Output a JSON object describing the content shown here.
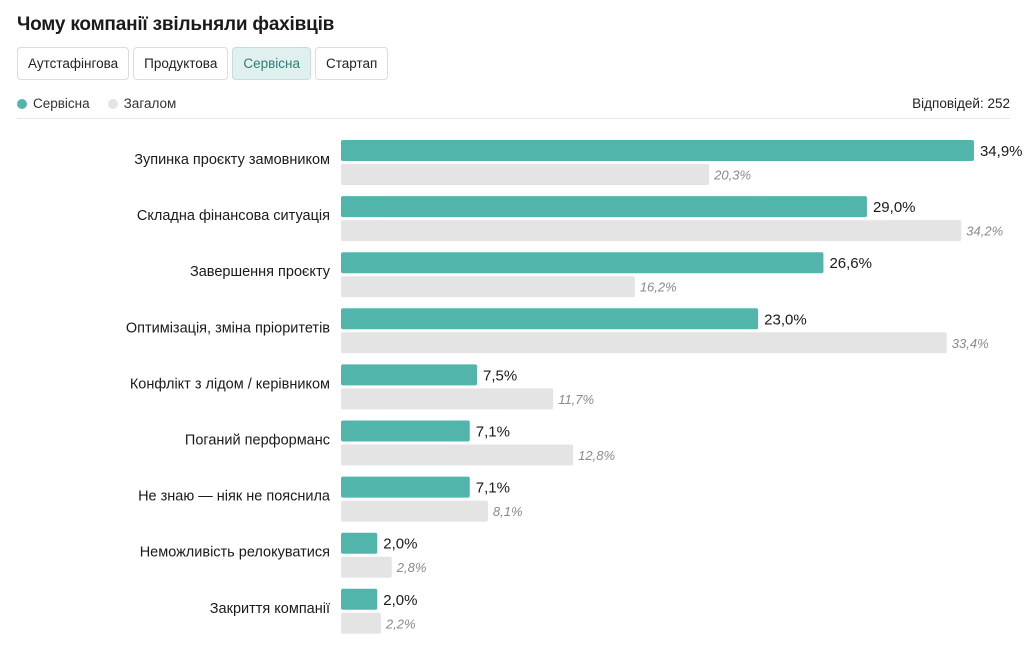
{
  "header": {
    "title": "Чому компанії звільняли фахівців"
  },
  "tabs": [
    {
      "label": "Аутстафінгова",
      "active": false
    },
    {
      "label": "Продуктова",
      "active": false
    },
    {
      "label": "Сервісна",
      "active": true
    },
    {
      "label": "Стартап",
      "active": false
    }
  ],
  "legend": {
    "primary": {
      "label": "Сервісна",
      "color": "#52b5ab"
    },
    "secondary": {
      "label": "Загалом",
      "color": "#e4e4e4"
    }
  },
  "responses_label": "Відповідей: 252",
  "chart_data": {
    "type": "bar",
    "orientation": "horizontal",
    "categories": [
      "Зупинка проєкту замовником",
      "Складна фінансова ситуація",
      "Завершення проєкту",
      "Оптимізація, зміна пріоритетів",
      "Конфлікт з лідом / керівником",
      "Поганий перформанс",
      "Не знаю — ніяк не пояснила",
      "Неможливість релокуватися",
      "Закриття компанії"
    ],
    "series": [
      {
        "name": "Сервісна",
        "color": "#52b5ab",
        "values": [
          34.9,
          29.0,
          26.6,
          23.0,
          7.5,
          7.1,
          7.1,
          2.0,
          2.0
        ],
        "labels": [
          "34,9%",
          "29,0%",
          "26,6%",
          "23,0%",
          "7,5%",
          "7,1%",
          "7,1%",
          "2,0%",
          "2,0%"
        ]
      },
      {
        "name": "Загалом",
        "color": "#e4e4e4",
        "values": [
          20.3,
          34.2,
          16.2,
          33.4,
          11.7,
          12.8,
          8.1,
          2.8,
          2.2
        ],
        "labels": [
          "20,3%",
          "34,2%",
          "16,2%",
          "33,4%",
          "11,7%",
          "12,8%",
          "8,1%",
          "2,8%",
          "2,2%"
        ]
      }
    ],
    "unit": "%",
    "xlim": [
      0,
      36.5
    ],
    "grid": false,
    "legend_position": "top-left"
  }
}
